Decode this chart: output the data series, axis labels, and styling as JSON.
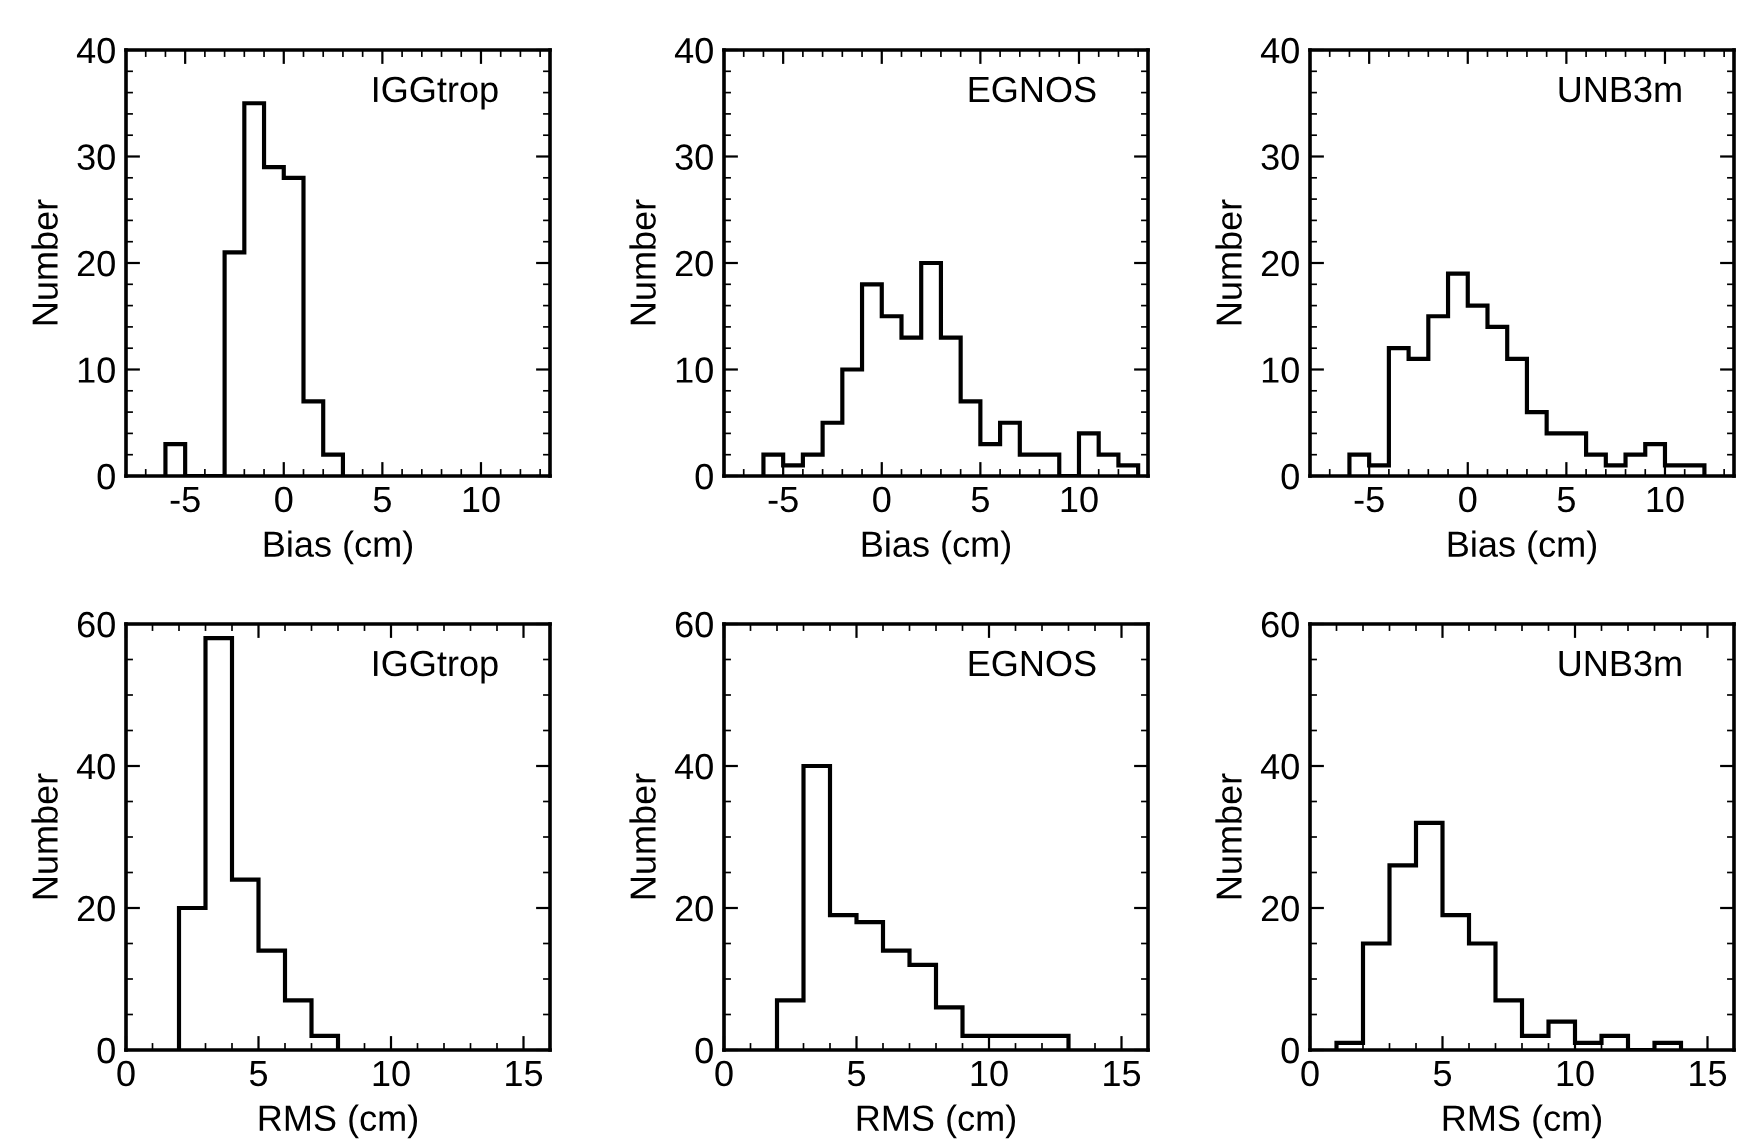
{
  "chart_data": [
    {
      "type": "histogram",
      "xlabel": "Bias (cm)",
      "ylabel": "Number",
      "annotations": [
        "IGGtrop"
      ],
      "color": "#000000",
      "bins": [
        -6,
        -5,
        -4,
        -3,
        -2,
        -1,
        0,
        1,
        2,
        3
      ],
      "values": [
        3,
        0,
        0,
        21,
        35,
        29,
        28,
        7,
        2
      ],
      "xlim": [
        -8,
        13.5
      ],
      "ylim": [
        0,
        40
      ],
      "xticks": [
        -5,
        0,
        5,
        10
      ],
      "yticks": [
        0,
        10,
        20,
        30,
        40
      ],
      "grid": false,
      "legend": false
    },
    {
      "type": "histogram",
      "xlabel": "Bias (cm)",
      "ylabel": "Number",
      "annotations": [
        "EGNOS"
      ],
      "color": "#000000",
      "bins": [
        -6,
        -5,
        -4,
        -3,
        -2,
        -1,
        0,
        1,
        2,
        3,
        4,
        5,
        6,
        7,
        8,
        9,
        10,
        11,
        12,
        13
      ],
      "values": [
        2,
        1,
        2,
        5,
        10,
        18,
        15,
        13,
        20,
        13,
        7,
        3,
        5,
        2,
        2,
        0,
        4,
        2,
        1
      ],
      "xlim": [
        -8,
        13.5
      ],
      "ylim": [
        0,
        40
      ],
      "xticks": [
        -5,
        0,
        5,
        10
      ],
      "yticks": [
        0,
        10,
        20,
        30,
        40
      ],
      "grid": false,
      "legend": false
    },
    {
      "type": "histogram",
      "xlabel": "Bias (cm)",
      "ylabel": "Number",
      "annotations": [
        "UNB3m"
      ],
      "color": "#000000",
      "bins": [
        -6,
        -5,
        -4,
        -3,
        -2,
        -1,
        0,
        1,
        2,
        3,
        4,
        5,
        6,
        7,
        8,
        9,
        10,
        11,
        12
      ],
      "values": [
        2,
        1,
        12,
        11,
        15,
        19,
        16,
        14,
        11,
        6,
        4,
        4,
        2,
        1,
        2,
        3,
        1,
        1
      ],
      "xlim": [
        -8,
        13.5
      ],
      "ylim": [
        0,
        40
      ],
      "xticks": [
        -5,
        0,
        5,
        10
      ],
      "yticks": [
        0,
        10,
        20,
        30,
        40
      ],
      "grid": false,
      "legend": false
    },
    {
      "type": "histogram",
      "xlabel": "RMS (cm)",
      "ylabel": "Number",
      "annotations": [
        "IGGtrop"
      ],
      "color": "#000000",
      "bins": [
        2,
        3,
        4,
        5,
        6,
        7,
        8
      ],
      "values": [
        20,
        58,
        24,
        14,
        7,
        2
      ],
      "xlim": [
        0,
        16
      ],
      "ylim": [
        0,
        60
      ],
      "xticks": [
        0,
        5,
        10,
        15
      ],
      "yticks": [
        0,
        20,
        40,
        60
      ],
      "grid": false,
      "legend": false
    },
    {
      "type": "histogram",
      "xlabel": "RMS (cm)",
      "ylabel": "Number",
      "annotations": [
        "EGNOS"
      ],
      "color": "#000000",
      "bins": [
        2,
        3,
        4,
        5,
        6,
        7,
        8,
        9,
        10,
        11,
        12,
        13
      ],
      "values": [
        7,
        40,
        19,
        18,
        14,
        12,
        6,
        2,
        2,
        2,
        2
      ],
      "xlim": [
        0,
        16
      ],
      "ylim": [
        0,
        60
      ],
      "xticks": [
        0,
        5,
        10,
        15
      ],
      "yticks": [
        0,
        20,
        40,
        60
      ],
      "grid": false,
      "legend": false
    },
    {
      "type": "histogram",
      "xlabel": "RMS (cm)",
      "ylabel": "Number",
      "annotations": [
        "UNB3m"
      ],
      "color": "#000000",
      "bins": [
        1,
        2,
        3,
        4,
        5,
        6,
        7,
        8,
        9,
        10,
        11,
        12,
        13,
        14
      ],
      "values": [
        1,
        15,
        26,
        32,
        19,
        15,
        7,
        2,
        4,
        1,
        2,
        0,
        1
      ],
      "xlim": [
        0,
        16
      ],
      "ylim": [
        0,
        60
      ],
      "xticks": [
        0,
        5,
        10,
        15
      ],
      "yticks": [
        0,
        20,
        40,
        60
      ],
      "grid": false,
      "legend": false
    }
  ]
}
